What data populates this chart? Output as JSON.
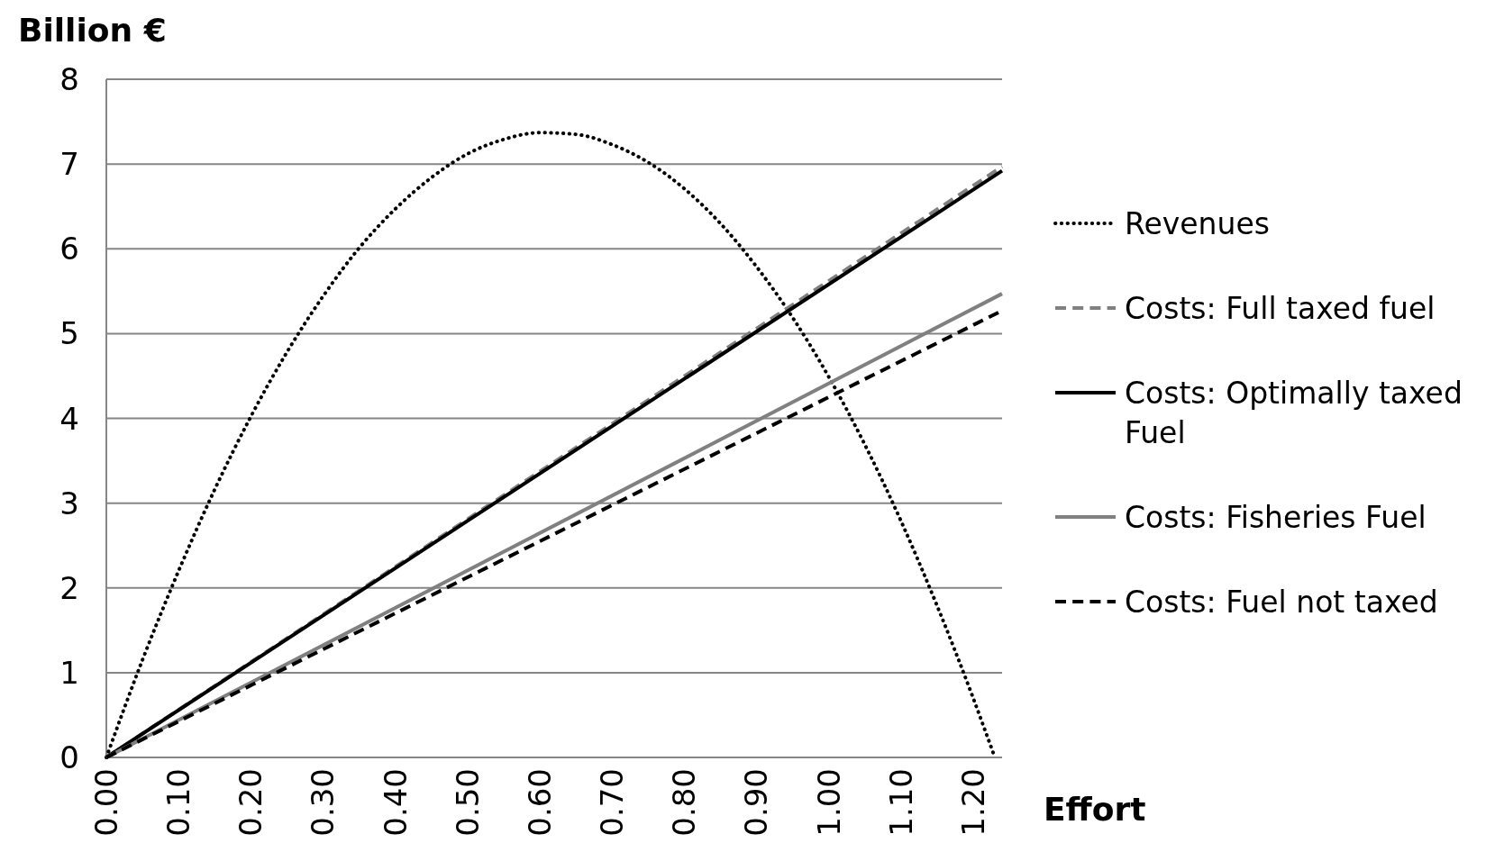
{
  "chart_data": {
    "type": "line",
    "xlabel": "Effort",
    "ylabel": "Billion €",
    "xlim": [
      0,
      1.24
    ],
    "ylim": [
      0,
      8
    ],
    "xticks": [
      {
        "value": 0,
        "label": "0.00"
      },
      {
        "value": 0.1,
        "label": "0.10"
      },
      {
        "value": 0.2,
        "label": "0.20"
      },
      {
        "value": 0.3,
        "label": "0.30"
      },
      {
        "value": 0.4,
        "label": "0.40"
      },
      {
        "value": 0.5,
        "label": "0.50"
      },
      {
        "value": 0.6,
        "label": "0.60"
      },
      {
        "value": 0.7,
        "label": "0.70"
      },
      {
        "value": 0.8,
        "label": "0.80"
      },
      {
        "value": 0.9,
        "label": "0.90"
      },
      {
        "value": 1.0,
        "label": "1.00"
      },
      {
        "value": 1.1,
        "label": "1.10"
      },
      {
        "value": 1.2,
        "label": "1.20"
      }
    ],
    "yticks": [
      0,
      1,
      2,
      3,
      4,
      5,
      6,
      7,
      8
    ],
    "grid": "y",
    "legend": "right",
    "marker": "none",
    "series": [
      {
        "name": "Revenues",
        "color": "#000000",
        "line_style": "dotted",
        "x": [
          0,
          0.05,
          0.1,
          0.15,
          0.2,
          0.25,
          0.3,
          0.35,
          0.4,
          0.45,
          0.5,
          0.55,
          0.6,
          0.65,
          0.7,
          0.75,
          0.8,
          0.85,
          0.9,
          0.95,
          1.0,
          1.05,
          1.1,
          1.15,
          1.2,
          1.23
        ],
        "values": [
          0,
          1.15,
          2.2,
          3.16,
          4.02,
          4.78,
          5.44,
          6.01,
          6.47,
          6.84,
          7.12,
          7.29,
          7.37,
          7.35,
          7.23,
          7.02,
          6.71,
          6.3,
          5.79,
          5.19,
          4.49,
          3.69,
          2.79,
          1.79,
          0.7,
          0
        ]
      },
      {
        "name": "Costs: Full taxed fuel",
        "color": "#808080",
        "line_style": "dashed",
        "x": [
          0,
          1.24
        ],
        "values": [
          0,
          6.97
        ]
      },
      {
        "name": "Costs: Optimally taxed Fuel",
        "color": "#000000",
        "line_style": "solid",
        "x": [
          0,
          1.24
        ],
        "values": [
          0,
          6.92
        ]
      },
      {
        "name": "Costs: Fisheries Fuel",
        "color": "#808080",
        "line_style": "solid",
        "x": [
          0,
          1.24
        ],
        "values": [
          0,
          5.47
        ]
      },
      {
        "name": "Costs: Fuel not taxed",
        "color": "#000000",
        "line_style": "dashed",
        "x": [
          0,
          1.24
        ],
        "values": [
          0,
          5.27
        ]
      }
    ]
  }
}
